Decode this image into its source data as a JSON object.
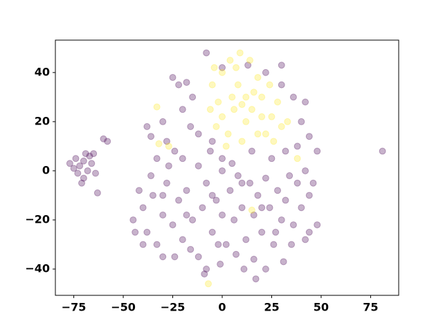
{
  "chart_data": {
    "type": "scatter",
    "xlim": [
      -84.3,
      89.2
    ],
    "ylim": [
      -50.7,
      53.2
    ],
    "xticks": [
      {
        "value": -75,
        "label": "−75"
      },
      {
        "value": -50,
        "label": "−50"
      },
      {
        "value": -25,
        "label": "−25"
      },
      0,
      25,
      50,
      75
    ],
    "yticks": [
      {
        "value": -40,
        "label": "−40"
      },
      {
        "value": -20,
        "label": "−20"
      },
      0,
      20,
      40
    ],
    "series": [
      {
        "color": "#440154",
        "x": [
          -72,
          -70,
          -68,
          -74,
          -73,
          -66,
          -70,
          -75,
          -69,
          -64,
          -71,
          -77,
          -67,
          -63,
          -58,
          -60,
          -65,
          -45,
          -40,
          -38,
          -35,
          -33,
          -30,
          -28,
          -25,
          -22,
          -20,
          -18,
          -15,
          -12,
          -10,
          -8,
          -5,
          -3,
          0,
          2,
          4,
          6,
          8,
          10,
          12,
          14,
          16,
          18,
          20,
          22,
          24,
          26,
          28,
          30,
          32,
          34,
          36,
          38,
          40,
          42,
          44,
          -42,
          -36,
          -27,
          -20,
          -12,
          -6,
          0,
          5,
          15,
          25,
          32,
          -24,
          -16,
          -8,
          -1,
          7,
          16,
          22,
          31,
          -9,
          -2,
          11,
          17,
          -44,
          -30,
          44,
          48,
          46,
          48,
          42,
          -40,
          -18,
          -5,
          10,
          20,
          0,
          -30,
          35,
          27,
          -25,
          -22,
          -30,
          -28,
          -33,
          -20,
          -15,
          -12,
          -8,
          0,
          13,
          22,
          30,
          36,
          40,
          42,
          -5,
          -36,
          -38,
          -24,
          -16,
          38,
          44,
          30,
          -18,
          81
        ],
        "y": [
          2,
          4,
          0,
          5,
          -1,
          3,
          -3,
          1,
          7,
          -1,
          -5,
          3,
          6,
          -9,
          12,
          13,
          7,
          -20,
          -15,
          -25,
          -10,
          -30,
          -18,
          -5,
          -22,
          -12,
          -28,
          -8,
          -20,
          -35,
          -15,
          -5,
          -25,
          -12,
          -18,
          -30,
          -8,
          -20,
          -2,
          -15,
          -28,
          -5,
          -18,
          -10,
          -25,
          -3,
          -15,
          -30,
          -8,
          -20,
          -12,
          -2,
          -22,
          -5,
          -15,
          -28,
          -10,
          -8,
          -2,
          2,
          5,
          2,
          8,
          5,
          3,
          8,
          5,
          8,
          -35,
          -32,
          -40,
          -38,
          -34,
          -36,
          -40,
          -37,
          -42,
          -30,
          -40,
          -44,
          -25,
          -35,
          -25,
          -22,
          -5,
          8,
          0,
          -30,
          -18,
          -10,
          -5,
          -15,
          0,
          -10,
          -30,
          -25,
          38,
          35,
          20,
          12,
          5,
          25,
          30,
          15,
          48,
          42,
          43,
          40,
          35,
          30,
          20,
          28,
          12,
          14,
          18,
          8,
          18,
          10,
          14,
          43,
          36,
          8
        ]
      },
      {
        "color": "#fde725",
        "x": [
          10,
          5,
          15,
          0,
          20,
          8,
          12,
          -2,
          18,
          25,
          3,
          22,
          -5,
          7,
          14,
          28,
          -3,
          10,
          30,
          0,
          16,
          6,
          24,
          -6,
          12,
          20,
          4,
          9,
          -4,
          26,
          33,
          2,
          18,
          -33,
          -7,
          15,
          -27,
          -32,
          38
        ],
        "y": [
          27,
          30,
          25,
          22,
          30,
          35,
          20,
          28,
          38,
          22,
          15,
          15,
          35,
          42,
          45,
          28,
          18,
          12,
          18,
          40,
          32,
          25,
          35,
          25,
          30,
          22,
          45,
          48,
          42,
          12,
          20,
          10,
          15,
          26,
          -46,
          -16,
          10,
          11,
          5
        ]
      }
    ]
  }
}
